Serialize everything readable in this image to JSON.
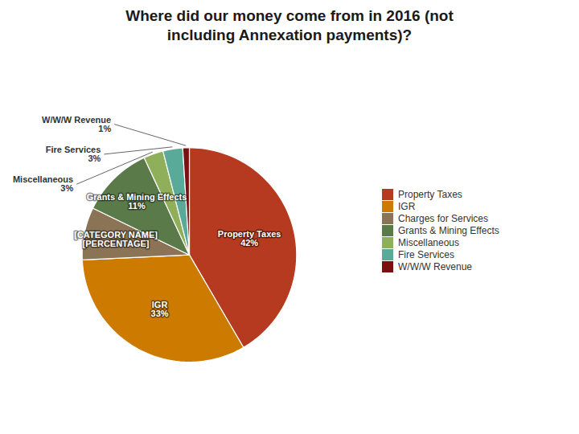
{
  "chart_data": {
    "type": "pie",
    "title": "Where did our money come from in 2016 (not\nincluding Annexation payments)?",
    "categories": [
      "Property Taxes",
      "IGR",
      "Charges for Services",
      "Grants & Mining Effects",
      "Miscellaneous",
      "Fire Services",
      "W/W/W Revenue"
    ],
    "values": [
      42,
      33,
      8,
      11,
      3,
      3,
      1
    ],
    "colors": [
      "#b53a1f",
      "#cc7a00",
      "#8b7355",
      "#5a7a4a",
      "#8faf5a",
      "#5aaa99",
      "#7a1010"
    ],
    "data_labels": true,
    "value_labels": [
      "Property Taxes\n42%",
      "IGR\n33%",
      "[CATEGORY NAME]\n[PERCENTAGE]",
      "Grants & Mining Effects\n11%",
      "Miscellaneous\n3%",
      "Fire Services\n3%",
      "W/W/W Revenue\n1%"
    ],
    "legend": "right"
  }
}
